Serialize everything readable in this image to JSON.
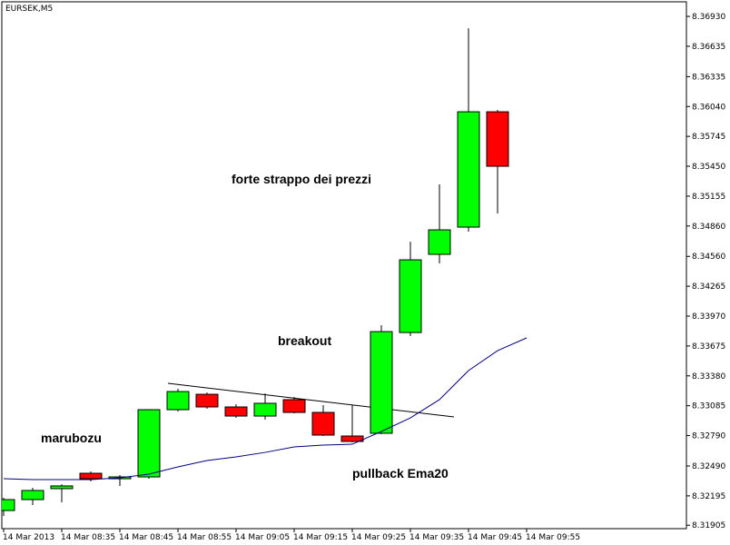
{
  "chart_data": {
    "type": "candlestick",
    "title": "EURSEK,M5",
    "annotations": [
      "marubozu",
      "breakout",
      "forte strappo dei prezzi",
      "pullback Ema20"
    ],
    "categories": [
      "14 Mar 2013",
      null,
      "14 Mar 08:35",
      null,
      "14 Mar 08:45",
      null,
      "14 Mar 08:55",
      null,
      "14 Mar 09:05",
      null,
      "14 Mar 09:15",
      null,
      "14 Mar 09:25",
      null,
      "14 Mar 09:35",
      null,
      "14 Mar 09:45",
      null,
      "14 Mar 09:55"
    ],
    "open": [
      8.3205,
      8.32158,
      8.32266,
      8.32418,
      8.32364,
      8.32382,
      8.33046,
      8.33198,
      8.33073,
      8.32983,
      8.33145,
      8.33019,
      8.32786,
      8.32813,
      8.33808,
      8.3458,
      8.34849,
      8.35988,
      null
    ],
    "high": [
      8.32176,
      8.32275,
      8.3231,
      8.32436,
      8.324,
      8.33046,
      8.33252,
      8.33216,
      8.331,
      8.33207,
      8.33172,
      8.33091,
      8.33091,
      8.3388,
      8.34705,
      8.35271,
      8.36813,
      8.36006,
      null
    ],
    "low": [
      8.31996,
      8.32104,
      8.32131,
      8.32337,
      8.32293,
      8.32364,
      8.33028,
      8.33055,
      8.32965,
      8.32947,
      8.3301,
      8.32786,
      8.32723,
      8.32804,
      8.33773,
      8.3449,
      8.34804,
      8.34984,
      null
    ],
    "close": [
      8.32158,
      8.32248,
      8.32293,
      8.32364,
      8.32382,
      8.33046,
      8.33225,
      8.33073,
      8.32983,
      8.33109,
      8.33019,
      8.32795,
      8.32732,
      8.33817,
      8.34526,
      8.34822,
      8.35988,
      8.3545,
      null
    ],
    "ema": [
      8.32364,
      8.32355,
      8.32355,
      8.32355,
      8.32373,
      8.32409,
      8.32481,
      8.32544,
      8.3258,
      8.32624,
      8.32678,
      8.32696,
      8.32705,
      8.32831,
      8.32965,
      8.33145,
      8.33432,
      8.33629,
      8.33755
    ],
    "up_color": "#00ff00",
    "down_color": "#ff0000",
    "ema_color": "#000080",
    "ylim": [
      8.31871,
      8.37074
    ],
    "yticks": [
      {
        "value": 8.3693,
        "label": "8.36930"
      },
      8.36635,
      8.36335,
      {
        "value": 8.3604,
        "label": "8.36040"
      },
      8.35745,
      {
        "value": 8.3545,
        "label": "8.35450"
      },
      8.35155,
      {
        "value": 8.3486,
        "label": "8.34860"
      },
      {
        "value": 8.3456,
        "label": "8.34560"
      },
      8.34265,
      {
        "value": 8.3397,
        "label": "8.33970"
      },
      8.33675,
      {
        "value": 8.3338,
        "label": "8.33380"
      },
      8.33085,
      {
        "value": 8.3279,
        "label": "8.32790"
      },
      {
        "value": 8.3249,
        "label": "8.32490"
      },
      8.32195,
      8.31905
    ]
  }
}
